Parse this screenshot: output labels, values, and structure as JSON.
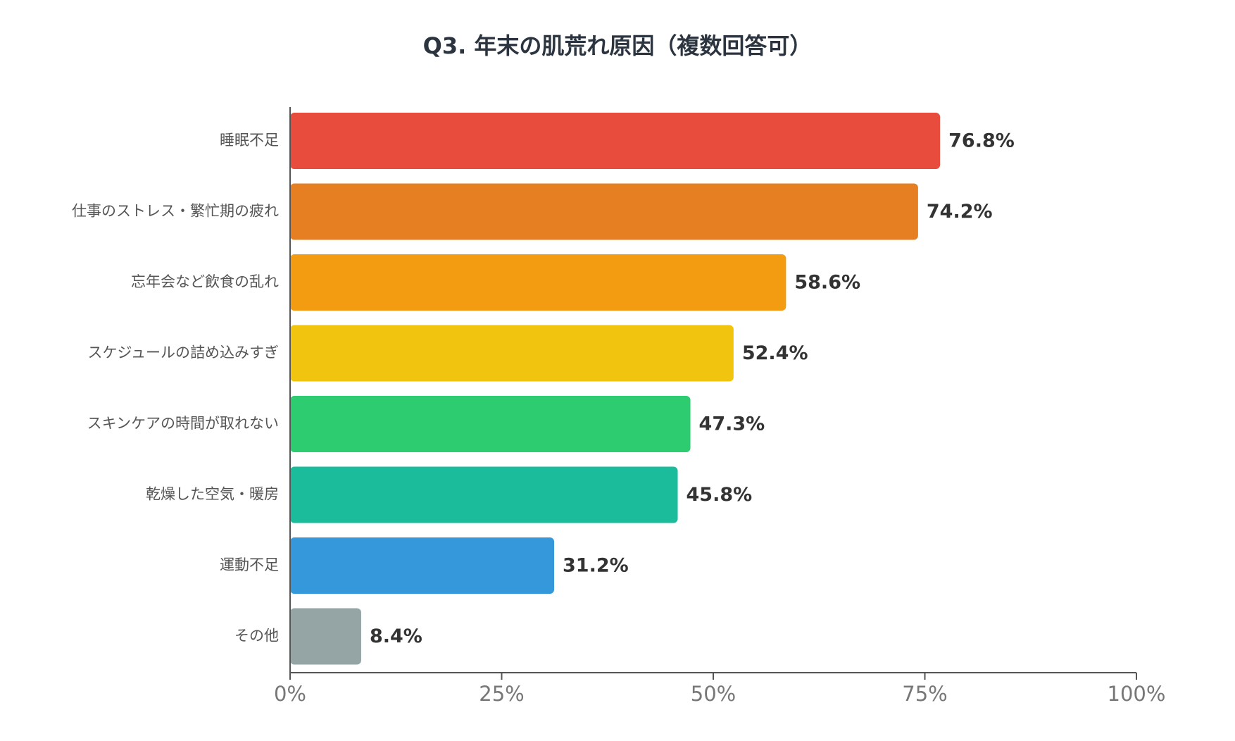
{
  "chart_data": {
    "type": "bar",
    "orientation": "horizontal",
    "title": "Q3. 年末の肌荒れ原因（複数回答可）",
    "xlabel": "",
    "ylabel": "",
    "xlim": [
      0,
      100
    ],
    "x_ticks": [
      {
        "value": 0,
        "label": "0%"
      },
      {
        "value": 25,
        "label": "25%"
      },
      {
        "value": 50,
        "label": "50%"
      },
      {
        "value": 75,
        "label": "75%"
      },
      {
        "value": 100,
        "label": "100%"
      }
    ],
    "grid": false,
    "categories": [
      "睡眠不足",
      "仕事のストレス・繁忙期の疲れ",
      "忘年会など飲食の乱れ",
      "スケジュールの詰め込みすぎ",
      "スキンケアの時間が取れない",
      "乾燥した空気・暖房",
      "運動不足",
      "その他"
    ],
    "values": [
      76.8,
      74.2,
      58.6,
      52.4,
      47.3,
      45.8,
      31.2,
      8.4
    ],
    "value_labels": [
      "76.8%",
      "74.2%",
      "58.6%",
      "52.4%",
      "47.3%",
      "45.8%",
      "31.2%",
      "8.4%"
    ],
    "colors": [
      "#e74c3c",
      "#e67e22",
      "#f39c12",
      "#f1c40f",
      "#2ecc71",
      "#1abc9c",
      "#3498db",
      "#95a5a6"
    ]
  },
  "style": {
    "axis_color": "#555555",
    "category_label_color": "#555555",
    "value_label_color": "#333333",
    "tick_label_color": "#777777",
    "title_color": "#2c3440"
  }
}
